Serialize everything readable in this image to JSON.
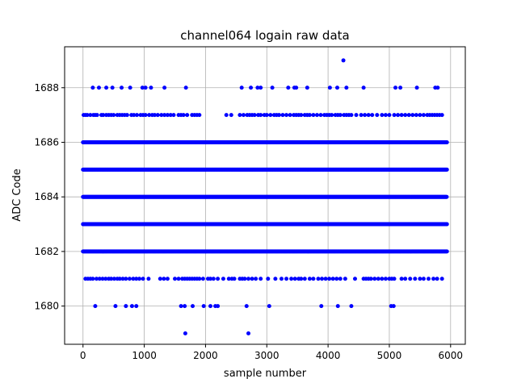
{
  "chart_data": {
    "type": "scatter",
    "title": "channel064 logain raw data",
    "xlabel": "sample number",
    "ylabel": "ADC Code",
    "xlim": [
      -300,
      6240
    ],
    "ylim": [
      1678.6,
      1689.5
    ],
    "x_ticks": [
      0,
      1000,
      2000,
      3000,
      4000,
      5000,
      6000
    ],
    "y_ticks": [
      1680,
      1682,
      1684,
      1686,
      1688
    ],
    "grid": true,
    "marker_color": "#0000ff",
    "series": [
      {
        "dense_levels": [
          {
            "y": 1682,
            "x_range": [
              0,
              5940
            ],
            "step": 12
          },
          {
            "y": 1683,
            "x_range": [
              0,
              5940
            ],
            "step": 10
          },
          {
            "y": 1684,
            "x_range": [
              0,
              5940
            ],
            "step": 8
          },
          {
            "y": 1685,
            "x_range": [
              0,
              5940
            ],
            "step": 10
          },
          {
            "y": 1686,
            "x_range": [
              0,
              5940
            ],
            "step": 12
          }
        ],
        "sparse_points": [
          {
            "y": 1687,
            "x": [
              10,
              40,
              70,
              120,
              170,
              200,
              230,
              300,
              330,
              380,
              420,
              460,
              500,
              560,
              600,
              640,
              680,
              720,
              790,
              830,
              880,
              940,
              980,
              1020,
              1080,
              1130,
              1170,
              1220,
              1280,
              1330,
              1380,
              1430,
              1480,
              1560,
              1600,
              1640,
              1700,
              1780,
              1820,
              1860,
              1900,
              2340,
              2420,
              2560,
              2620,
              2680,
              2720,
              2760,
              2800,
              2860,
              2900,
              2960,
              3000,
              3060,
              3120,
              3160,
              3200,
              3260,
              3320,
              3380,
              3440,
              3480,
              3520,
              3560,
              3620,
              3660,
              3700,
              3760,
              3820,
              3880,
              3940,
              3980,
              4020,
              4060,
              4120,
              4160,
              4200,
              4260,
              4300,
              4340,
              4380,
              4460,
              4540,
              4600,
              4660,
              4720,
              4800,
              4880,
              4940,
              5000,
              5080,
              5140,
              5200,
              5260,
              5320,
              5380,
              5440,
              5500,
              5560,
              5620,
              5660,
              5700,
              5740,
              5780,
              5820,
              5860
            ]
          },
          {
            "y": 1681,
            "x": [
              40,
              80,
              120,
              160,
              220,
              270,
              320,
              370,
              420,
              460,
              510,
              560,
              600,
              650,
              700,
              760,
              820,
              870,
              920,
              980,
              1070,
              1260,
              1320,
              1380,
              1500,
              1560,
              1620,
              1660,
              1700,
              1740,
              1780,
              1820,
              1860,
              1900,
              1960,
              2040,
              2080,
              2130,
              2200,
              2290,
              2380,
              2430,
              2470,
              2560,
              2600,
              2640,
              2700,
              2760,
              2820,
              2900,
              3020,
              3140,
              3240,
              3320,
              3400,
              3460,
              3520,
              3560,
              3620,
              3700,
              3760,
              3840,
              3900,
              3960,
              4020,
              4080,
              4140,
              4200,
              4280,
              4440,
              4580,
              4620,
              4660,
              4700,
              4760,
              4820,
              4880,
              4940,
              5000,
              5040,
              5080,
              5200,
              5260,
              5340,
              5420,
              5500,
              5560,
              5640,
              5720,
              5780,
              5860
            ]
          },
          {
            "y": 1688,
            "x": [
              160,
              260,
              380,
              480,
              630,
              770,
              970,
              1020,
              1110,
              1330,
              1680,
              2590,
              2740,
              2850,
              2900,
              3090,
              3350,
              3450,
              3480,
              3660,
              4030,
              4150,
              4300,
              4580,
              5100,
              5180,
              5450,
              5750,
              5790
            ]
          },
          {
            "y": 1680,
            "x": [
              200,
              530,
              700,
              800,
              870,
              1600,
              1660,
              1790,
              1970,
              2080,
              2160,
              2200,
              2670,
              3040,
              3890,
              4160,
              4380,
              5030,
              5070
            ]
          },
          {
            "y": 1689,
            "x": [
              4250
            ]
          },
          {
            "y": 1679,
            "x": [
              1670,
              2700
            ]
          }
        ]
      }
    ]
  }
}
